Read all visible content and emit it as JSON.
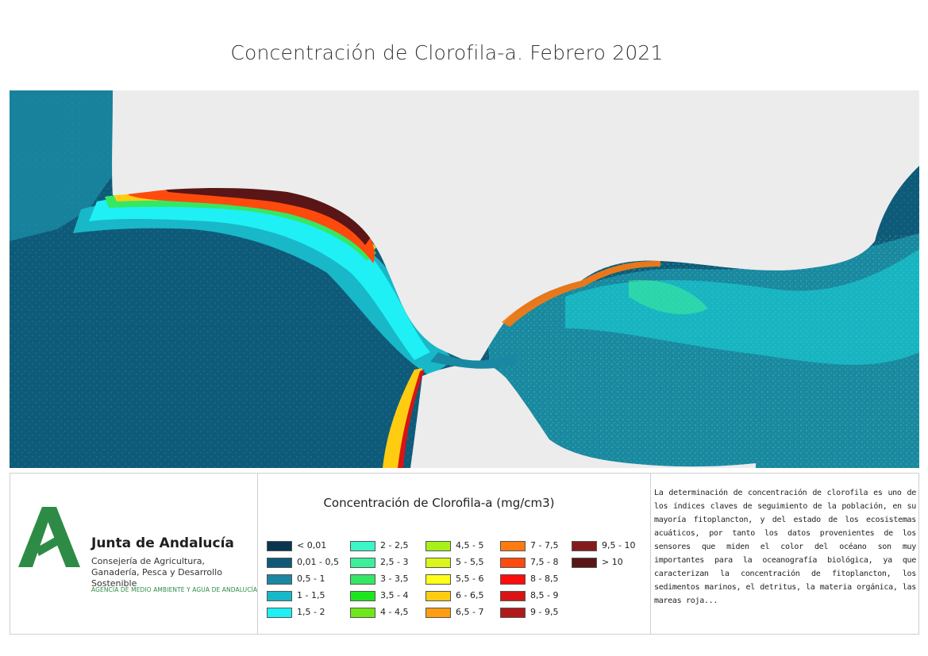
{
  "title": "Concentración de Clorofila-a. Febrero 2021",
  "organization": {
    "name": "Junta de Andalucía",
    "subtitle": "Consejería de Agricultura, Ganadería, Pesca y Desarrollo Sostenible",
    "agency": "AGENCIA DE MEDIO AMBIENTE Y AGUA DE ANDALUCÍA",
    "logo_icon": "junta-andalucia-a-logo",
    "logo_color": "#2e8b46"
  },
  "legend": {
    "title": "Concentración de Clorofila-a (mg/cm3)",
    "items": [
      {
        "label": "< 0,01",
        "color": "#0a3550"
      },
      {
        "label": "0,01 - 0,5",
        "color": "#0f5a79"
      },
      {
        "label": "0,5 - 1",
        "color": "#1a88a2"
      },
      {
        "label": "1 - 1,5",
        "color": "#18b8c8"
      },
      {
        "label": "1,5 - 2",
        "color": "#1ff0f5"
      },
      {
        "label": "2 - 2,5",
        "color": "#3cf5c8"
      },
      {
        "label": "2,5 - 3",
        "color": "#3cf09a"
      },
      {
        "label": "3 - 3,5",
        "color": "#34e864"
      },
      {
        "label": "3,5 - 4",
        "color": "#1ee61e"
      },
      {
        "label": "4 - 4,5",
        "color": "#6ee81c"
      },
      {
        "label": "4,5 - 5",
        "color": "#a6f01c"
      },
      {
        "label": "5 - 5,5",
        "color": "#dcf51a"
      },
      {
        "label": "5,5 - 6",
        "color": "#ffff18"
      },
      {
        "label": "6 - 6,5",
        "color": "#ffcc12"
      },
      {
        "label": "6,5 - 7",
        "color": "#ff9e12"
      },
      {
        "label": "7 - 7,5",
        "color": "#ff7a10"
      },
      {
        "label": "7,5 - 8",
        "color": "#ff4a0e"
      },
      {
        "label": "8 - 8,5",
        "color": "#ff0c0c"
      },
      {
        "label": "8,5 - 9",
        "color": "#d81414"
      },
      {
        "label": "9 - 9,5",
        "color": "#b01a1a"
      },
      {
        "label": "9,5 - 10",
        "color": "#851c1c"
      },
      {
        "label": "> 10",
        "color": "#5a1616"
      }
    ]
  },
  "description": "La determinación de concentración de clorofila es uno de los índices claves de seguimiento de la población, en su mayoría fitoplancton, y del estado de los ecosistemas acuáticos, por tanto los datos provenientes de los sensores que miden el color del océano son muy importantes para la oceanografía biológica, ya que caracterizan la concentración de fitoplancton, los sedimentos marinos, el detritus, la materia orgánica, las mareas roja...",
  "map": {
    "land_color": "#ececec",
    "ocean_color": "#0f5a79"
  }
}
